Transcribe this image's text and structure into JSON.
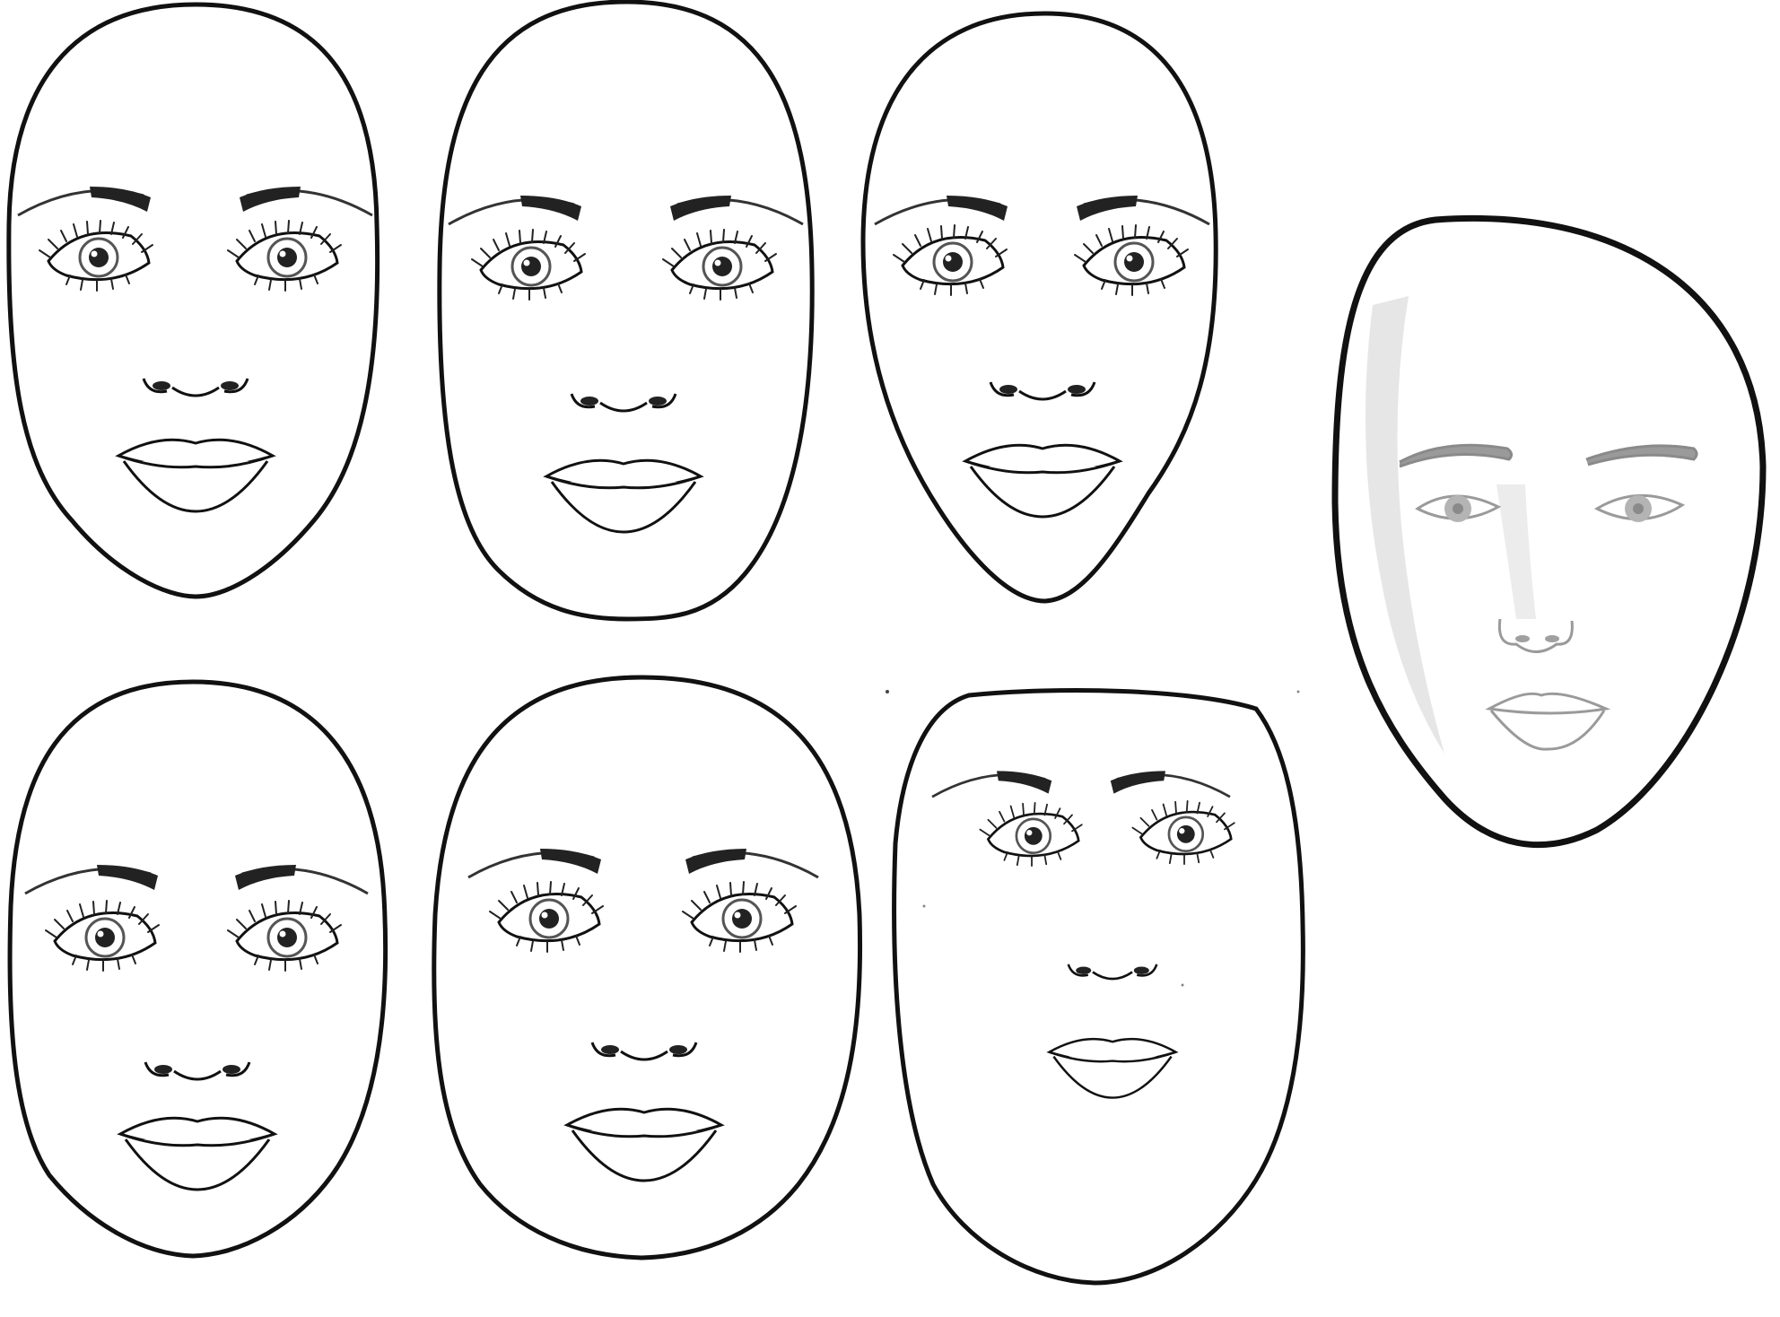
{
  "figure": {
    "background": "#ffffff",
    "line_color": "#111111",
    "faint_line_color": "#9a9a9a",
    "highlight_color": "#e2e2e2",
    "faces": [
      {
        "id": "oval",
        "style": "lashed"
      },
      {
        "id": "oblong",
        "style": "lashed"
      },
      {
        "id": "heart",
        "style": "lashed"
      },
      {
        "id": "diamond",
        "style": "sketch"
      },
      {
        "id": "round",
        "style": "lashed"
      },
      {
        "id": "square",
        "style": "lashed"
      },
      {
        "id": "triangle",
        "style": "lashed"
      }
    ]
  }
}
